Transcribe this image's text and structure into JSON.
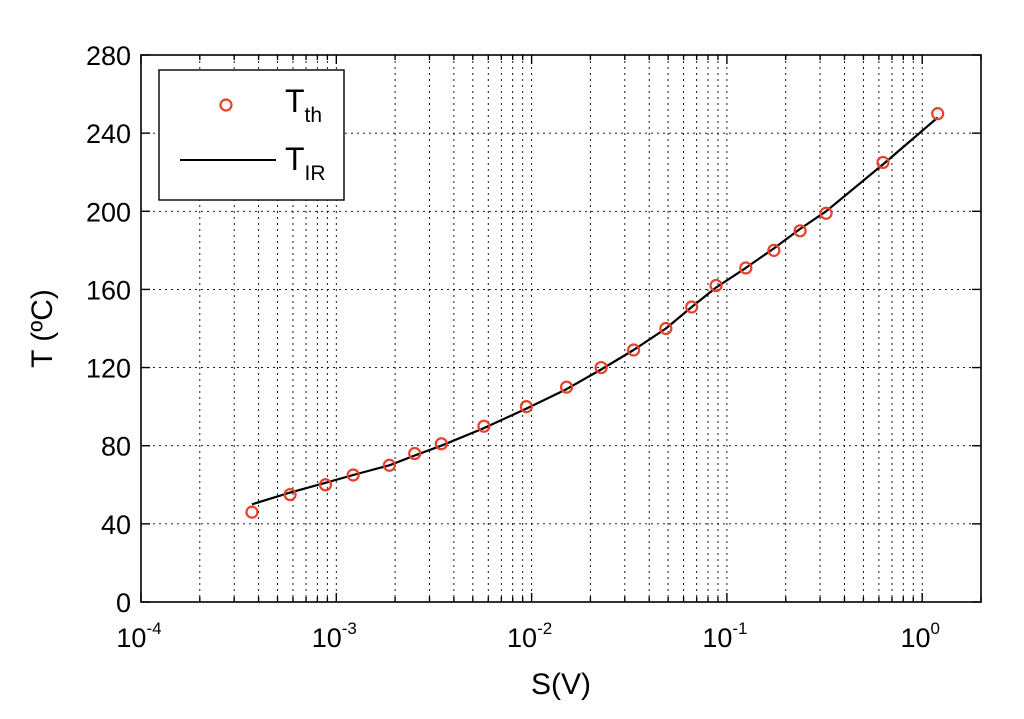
{
  "chart_data": {
    "type": "scatter",
    "xscale": "log",
    "xlim": [
      0.0001,
      2
    ],
    "ylim": [
      0,
      280
    ],
    "grid": true,
    "xlabel": "S(V)",
    "ylabel": "T (ºC)",
    "x_ticks": [
      {
        "base": "10",
        "exp": "-4"
      },
      {
        "base": "10",
        "exp": "-3"
      },
      {
        "base": "10",
        "exp": "-2"
      },
      {
        "base": "10",
        "exp": "-1"
      },
      {
        "base": "10",
        "exp": "0"
      }
    ],
    "y_ticks": [
      "0",
      "40",
      "80",
      "120",
      "160",
      "200",
      "240",
      "280"
    ],
    "legend": {
      "position": "top-left",
      "entries": [
        {
          "main": "T",
          "sub": "th"
        },
        {
          "main": "T",
          "sub": "IR"
        }
      ]
    },
    "series": [
      {
        "marker": "circle",
        "color": "#e8402a",
        "x": [
          0.00037,
          0.00058,
          0.00088,
          0.00122,
          0.00187,
          0.00252,
          0.00345,
          0.0057,
          0.0094,
          0.0151,
          0.0227,
          0.0333,
          0.0487,
          0.066,
          0.088,
          0.125,
          0.174,
          0.237,
          0.322,
          0.63,
          1.2
        ],
        "y": [
          46,
          55,
          60,
          65,
          70,
          76,
          81,
          90,
          100,
          110,
          120,
          129,
          140,
          151,
          162,
          171,
          180,
          190,
          199,
          225,
          250
        ]
      },
      {
        "line": "solid",
        "color": "#000000",
        "x": [
          0.00037,
          0.00058,
          0.00088,
          0.00122,
          0.00187,
          0.00252,
          0.00345,
          0.0057,
          0.0094,
          0.0151,
          0.0227,
          0.0333,
          0.0487,
          0.066,
          0.088,
          0.125,
          0.174,
          0.237,
          0.322,
          0.63,
          1.2
        ],
        "y": [
          50,
          56,
          61,
          65,
          70,
          75,
          80,
          89,
          99,
          109,
          119,
          129,
          140,
          151,
          161,
          171,
          181,
          191,
          200,
          224,
          248
        ]
      }
    ]
  }
}
